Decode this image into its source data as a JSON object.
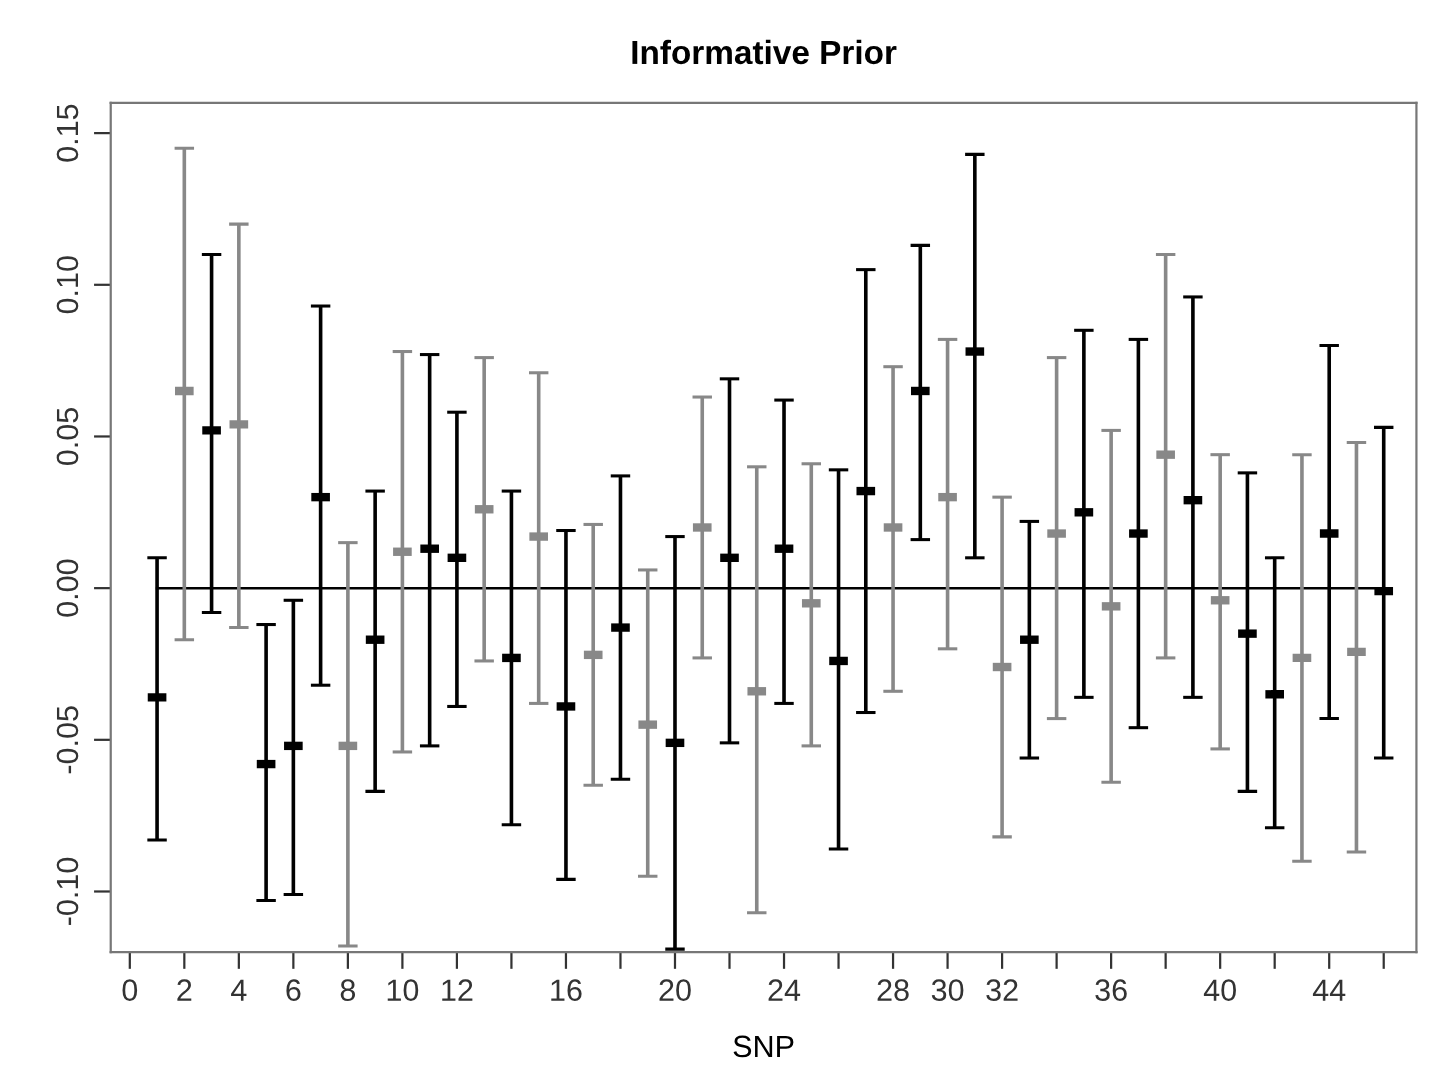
{
  "chart_data": {
    "type": "scatter",
    "title": "Informative Prior",
    "xlabel": "SNP",
    "x": [
      1,
      2,
      3,
      4,
      5,
      6,
      7,
      8,
      9,
      10,
      11,
      12,
      13,
      14,
      15,
      16,
      17,
      18,
      19,
      20,
      21,
      22,
      23,
      24,
      25,
      26,
      27,
      28,
      29,
      30,
      31,
      32,
      33,
      34,
      35,
      36,
      37,
      38,
      39,
      40,
      41,
      42,
      43,
      44,
      45,
      46
    ],
    "values": [
      -0.036,
      0.065,
      0.052,
      0.054,
      -0.058,
      -0.052,
      0.03,
      -0.052,
      -0.017,
      0.012,
      0.013,
      0.01,
      0.026,
      -0.023,
      0.017,
      -0.039,
      -0.022,
      -0.013,
      -0.045,
      -0.051,
      0.02,
      0.01,
      -0.034,
      0.013,
      -0.005,
      -0.024,
      0.032,
      0.02,
      0.065,
      0.03,
      0.078,
      -0.026,
      -0.017,
      0.018,
      0.025,
      -0.006,
      0.018,
      0.044,
      0.029,
      -0.004,
      -0.015,
      -0.035,
      -0.023,
      0.018,
      -0.021,
      -0.001
    ],
    "errors": [
      [
        -0.083,
        0.01
      ],
      [
        -0.017,
        0.145
      ],
      [
        -0.008,
        0.11
      ],
      [
        -0.013,
        0.12
      ],
      [
        -0.103,
        -0.012
      ],
      [
        -0.101,
        -0.004
      ],
      [
        -0.032,
        0.093
      ],
      [
        -0.118,
        0.015
      ],
      [
        -0.067,
        0.032
      ],
      [
        -0.054,
        0.078
      ],
      [
        -0.052,
        0.077
      ],
      [
        -0.039,
        0.058
      ],
      [
        -0.024,
        0.076
      ],
      [
        -0.078,
        0.032
      ],
      [
        -0.038,
        0.071
      ],
      [
        -0.096,
        0.019
      ],
      [
        -0.065,
        0.021
      ],
      [
        -0.063,
        0.037
      ],
      [
        -0.095,
        0.006
      ],
      [
        -0.119,
        0.017
      ],
      [
        -0.023,
        0.063
      ],
      [
        -0.051,
        0.069
      ],
      [
        -0.107,
        0.04
      ],
      [
        -0.038,
        0.062
      ],
      [
        -0.052,
        0.041
      ],
      [
        -0.086,
        0.039
      ],
      [
        -0.041,
        0.105
      ],
      [
        -0.034,
        0.073
      ],
      [
        0.016,
        0.113
      ],
      [
        -0.02,
        0.082
      ],
      [
        0.01,
        0.143
      ],
      [
        -0.082,
        0.03
      ],
      [
        -0.056,
        0.022
      ],
      [
        -0.043,
        0.076
      ],
      [
        -0.036,
        0.085
      ],
      [
        -0.064,
        0.052
      ],
      [
        -0.046,
        0.082
      ],
      [
        -0.023,
        0.11
      ],
      [
        -0.036,
        0.096
      ],
      [
        -0.053,
        0.044
      ],
      [
        -0.067,
        0.038
      ],
      [
        -0.079,
        0.01
      ],
      [
        -0.09,
        0.044
      ],
      [
        -0.043,
        0.08
      ],
      [
        -0.087,
        0.048
      ],
      [
        -0.056,
        0.053
      ]
    ],
    "colors": [
      "#000000",
      "#888888",
      "#000000",
      "#888888",
      "#000000",
      "#000000",
      "#000000",
      "#888888",
      "#000000",
      "#888888",
      "#000000",
      "#000000",
      "#888888",
      "#000000",
      "#888888",
      "#000000",
      "#888888",
      "#000000",
      "#888888",
      "#000000",
      "#888888",
      "#000000",
      "#888888",
      "#000000",
      "#888888",
      "#000000",
      "#000000",
      "#888888",
      "#000000",
      "#888888",
      "#000000",
      "#888888",
      "#000000",
      "#888888",
      "#000000",
      "#888888",
      "#000000",
      "#888888",
      "#000000",
      "#888888",
      "#000000",
      "#000000",
      "#888888",
      "#000000",
      "#888888",
      "#000000"
    ],
    "xlim": [
      -0.7,
      47.2
    ],
    "ylim": [
      -0.12,
      0.16
    ],
    "xticks": [
      0,
      2,
      4,
      6,
      8,
      10,
      12,
      {
        "value": 14,
        "label": null
      },
      16,
      {
        "value": 18,
        "label": null
      },
      20,
      {
        "value": 22,
        "label": null
      },
      24,
      {
        "value": 26,
        "label": null
      },
      28,
      30,
      32,
      {
        "value": 34,
        "label": null
      },
      36,
      {
        "value": 38,
        "label": null
      },
      40,
      {
        "value": 42,
        "label": null
      },
      44,
      {
        "value": 46,
        "label": null
      }
    ],
    "yticks": [
      {
        "value": -0.1,
        "label": "-0.10"
      },
      {
        "value": -0.05,
        "label": "-0.05"
      },
      {
        "value": 0,
        "label": "0.00"
      },
      {
        "value": 0.05,
        "label": "0.05"
      },
      {
        "value": 0.1,
        "label": "0.10"
      },
      {
        "value": 0.15,
        "label": "0.15"
      }
    ],
    "ref_lines": [
      {
        "axis": "y",
        "value": 0,
        "color": "#000000"
      }
    ],
    "grid": false,
    "legend": false
  }
}
